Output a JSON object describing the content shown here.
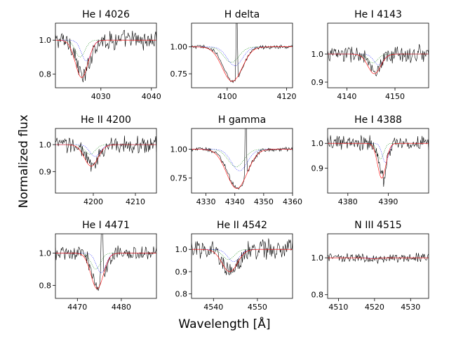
{
  "figure": {
    "xlabel": "Wavelength [$\\AA$]",
    "xlabel_display": "Wavelength [Å]",
    "ylabel": "Normalized flux"
  },
  "colors": {
    "observed": "#000000",
    "model_total": "#ff0000",
    "model_comp1": "#0000ff",
    "model_comp2": "#008000"
  },
  "chart_data": [
    {
      "type": "line",
      "title": "He I 4026",
      "xlim": [
        4021,
        4041
      ],
      "ylim": [
        0.72,
        1.1
      ],
      "xticks": [
        4030,
        4040
      ],
      "yticks": [
        0.8,
        1.0
      ],
      "ytick_labels": [
        "0.8",
        "1.0"
      ],
      "center": 4026.5,
      "depth": 0.22,
      "width": 1.7,
      "noise": 0.045,
      "series": [
        {
          "name": "observed"
        },
        {
          "name": "model total"
        },
        {
          "name": "component 1"
        },
        {
          "name": "component 2"
        }
      ]
    },
    {
      "type": "line",
      "title": "H delta",
      "xlim": [
        4088,
        4122
      ],
      "ylim": [
        0.62,
        1.22
      ],
      "xticks": [
        4100,
        4120
      ],
      "yticks": [
        0.75,
        1.0
      ],
      "ytick_labels": [
        "0.75",
        "1.00"
      ],
      "center": 4102,
      "depth": 0.32,
      "width": 4.5,
      "noise": 0.015,
      "emission": {
        "x": 4103.2,
        "height": 0.9
      },
      "series": [
        {
          "name": "observed"
        },
        {
          "name": "model total"
        },
        {
          "name": "component 1"
        },
        {
          "name": "component 2"
        }
      ]
    },
    {
      "type": "line",
      "title": "He I 4143",
      "xlim": [
        4136,
        4157
      ],
      "ylim": [
        0.88,
        1.11
      ],
      "xticks": [
        4140,
        4150
      ],
      "yticks": [
        0.9,
        1.0
      ],
      "ytick_labels": [
        "0.9",
        "1.0"
      ],
      "center": 4146,
      "depth": 0.07,
      "width": 1.8,
      "noise": 0.025,
      "series": [
        {
          "name": "observed"
        },
        {
          "name": "model total"
        },
        {
          "name": "component 1"
        },
        {
          "name": "component 2"
        }
      ]
    },
    {
      "type": "line",
      "title": "He II 4200",
      "xlim": [
        4191,
        4215
      ],
      "ylim": [
        0.82,
        1.06
      ],
      "xticks": [
        4200,
        4210
      ],
      "yticks": [
        0.9,
        1.0
      ],
      "ytick_labels": [
        "0.9",
        "1.0"
      ],
      "center": 4199.8,
      "depth": 0.08,
      "width": 2.2,
      "noise": 0.025,
      "series": [
        {
          "name": "observed"
        },
        {
          "name": "model total"
        },
        {
          "name": "component 1"
        },
        {
          "name": "component 2"
        }
      ]
    },
    {
      "type": "line",
      "title": "H gamma",
      "xlim": [
        4325,
        4360
      ],
      "ylim": [
        0.62,
        1.18
      ],
      "xticks": [
        4330,
        4340,
        4350,
        4360
      ],
      "yticks": [
        0.75,
        1.0
      ],
      "ytick_labels": [
        "0.75",
        "1.00"
      ],
      "center": 4341,
      "depth": 0.34,
      "width": 4.8,
      "noise": 0.015,
      "emission": {
        "x": 4343.8,
        "height": 0.9
      },
      "series": [
        {
          "name": "observed"
        },
        {
          "name": "model total"
        },
        {
          "name": "component 1"
        },
        {
          "name": "component 2"
        }
      ]
    },
    {
      "type": "line",
      "title": "He I 4388",
      "xlim": [
        4375,
        4400
      ],
      "ylim": [
        0.8,
        1.06
      ],
      "xticks": [
        4380,
        4390
      ],
      "yticks": [
        0.9,
        1.0
      ],
      "ytick_labels": [
        "0.9",
        "1.0"
      ],
      "center": 4388.7,
      "depth": 0.14,
      "width": 1.4,
      "noise": 0.025,
      "series": [
        {
          "name": "observed"
        },
        {
          "name": "model total"
        },
        {
          "name": "component 1"
        },
        {
          "name": "component 2"
        }
      ]
    },
    {
      "type": "line",
      "title": "He I 4471",
      "xlim": [
        4465,
        4488
      ],
      "ylim": [
        0.72,
        1.12
      ],
      "xticks": [
        4470,
        4480
      ],
      "yticks": [
        0.8,
        1.0
      ],
      "ytick_labels": [
        "0.8",
        "1.0"
      ],
      "center": 4474.8,
      "depth": 0.22,
      "width": 1.9,
      "noise": 0.035,
      "emission": {
        "x": 4475.6,
        "height": 0.5
      },
      "series": [
        {
          "name": "observed"
        },
        {
          "name": "model total"
        },
        {
          "name": "component 1"
        },
        {
          "name": "component 2"
        }
      ]
    },
    {
      "type": "line",
      "title": "He II 4542",
      "xlim": [
        4535,
        4558
      ],
      "ylim": [
        0.78,
        1.07
      ],
      "xticks": [
        4540,
        4550
      ],
      "yticks": [
        0.8,
        0.9,
        1.0
      ],
      "ytick_labels": [
        "0.8",
        "0.9",
        "1.0"
      ],
      "center": 4544,
      "depth": 0.1,
      "width": 2.4,
      "noise": 0.035,
      "series": [
        {
          "name": "observed"
        },
        {
          "name": "model total"
        },
        {
          "name": "component 1"
        },
        {
          "name": "component 2"
        }
      ]
    },
    {
      "type": "line",
      "title": "N III 4515",
      "xlim": [
        4507,
        4535
      ],
      "ylim": [
        0.78,
        1.13
      ],
      "xticks": [
        4510,
        4520,
        4530
      ],
      "yticks": [
        0.8,
        1.0
      ],
      "ytick_labels": [
        "0.8",
        "1.0"
      ],
      "center": 4520,
      "depth": 0.005,
      "width": 2,
      "noise": 0.02,
      "series": [
        {
          "name": "observed"
        },
        {
          "name": "model total"
        },
        {
          "name": "component 1"
        },
        {
          "name": "component 2"
        }
      ]
    }
  ]
}
